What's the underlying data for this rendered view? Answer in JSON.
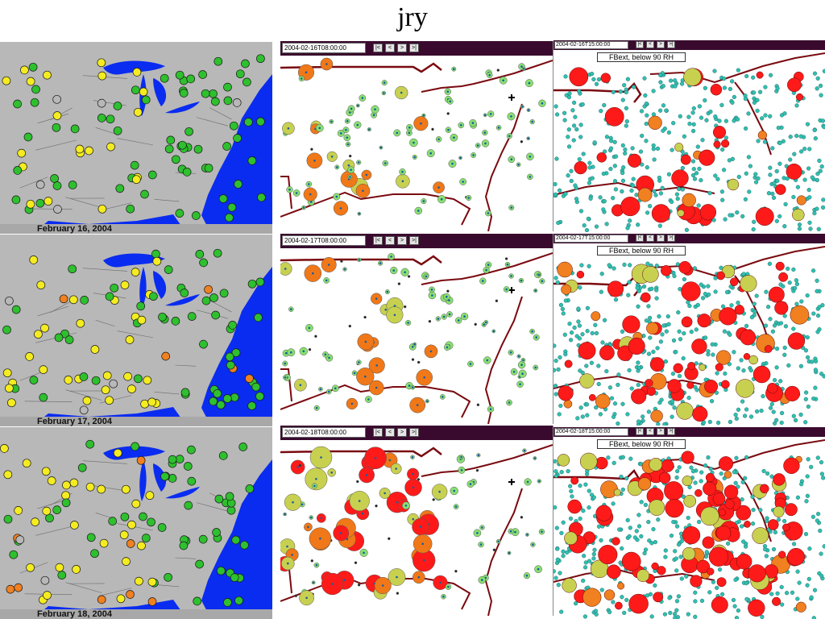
{
  "slide": {
    "title": "jry"
  },
  "aqi_maps": {
    "dates": [
      "February 16, 2004",
      "February 17, 2004",
      "February 18, 2004"
    ],
    "colors": {
      "good": "#2ec02e",
      "moderate": "#f4ec20",
      "usg": "#f08020",
      "background": "#b8b8b8",
      "water": "#0a2cf0"
    }
  },
  "station_maps": {
    "times": [
      "2004-02-16T08:00:00",
      "2004-02-17T08:00:00",
      "2004-02-18T08:00:00"
    ],
    "nav": {
      "first": "|<",
      "prev": "<",
      "next": ">",
      "last": ">|"
    }
  },
  "fbext_maps": {
    "times": [
      "2004-02-16T15:00:00",
      "2004-02-17T15:00:00",
      "2004-02-18T15:00:00"
    ],
    "legend": "FBext, below 90 RH",
    "nav": {
      "first": "|<",
      "prev": "<",
      "next": ">",
      "last": ">|"
    }
  }
}
